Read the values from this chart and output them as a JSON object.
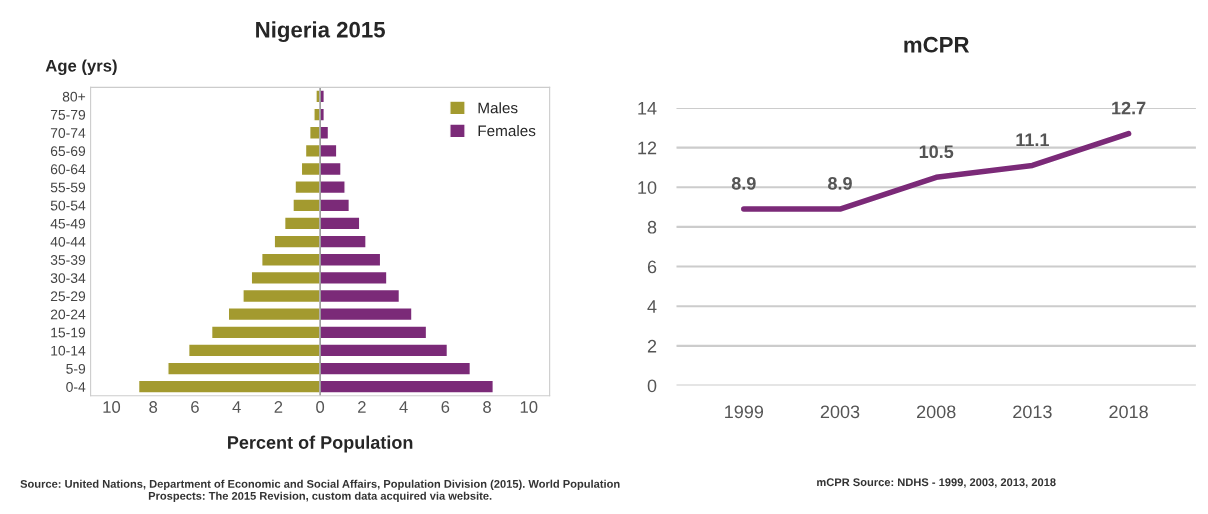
{
  "chart_data": [
    {
      "type": "bar",
      "orientation": "horizontal",
      "title": "Nigeria 2015",
      "ylabel": "Age (yrs)",
      "xlabel": "Percent of Population",
      "categories": [
        "80+",
        "75-79",
        "70-74",
        "65-69",
        "60-64",
        "55-59",
        "50-54",
        "45-49",
        "40-44",
        "35-39",
        "30-34",
        "25-29",
        "20-24",
        "15-19",
        "10-14",
        "5-9",
        "0-4"
      ],
      "series": [
        {
          "name": "Males",
          "color": "#a39a2f",
          "values": [
            -0.2,
            -0.3,
            -0.5,
            -0.7,
            -0.9,
            -1.2,
            -1.3,
            -1.7,
            -2.2,
            -2.8,
            -3.3,
            -3.7,
            -4.4,
            -5.2,
            -6.3,
            -7.3,
            -8.7
          ]
        },
        {
          "name": "Females",
          "color": "#7b2a78",
          "values": [
            0.2,
            0.2,
            0.4,
            0.8,
            1.0,
            1.2,
            1.4,
            1.9,
            2.2,
            2.9,
            3.2,
            3.8,
            4.4,
            5.1,
            6.1,
            7.2,
            8.3
          ]
        }
      ],
      "xlim": [
        -11,
        11
      ],
      "xticks": [
        {
          "value": -10,
          "label": "10"
        },
        {
          "value": -8,
          "label": "8"
        },
        {
          "value": -6,
          "label": "6"
        },
        {
          "value": -4,
          "label": "4"
        },
        {
          "value": -2,
          "label": "2"
        },
        0,
        2,
        4,
        6,
        8,
        10
      ],
      "legend": "top right",
      "grid": false,
      "stacked": true,
      "ref_lines": [
        {
          "axis": "x",
          "value": 0,
          "color": "#888888"
        }
      ],
      "annotations": [
        "Source: United Nations, Department of Economic and Social Affairs, Population Division (2015). World Population Prospects: The 2015 Revision, custom data acquired via website."
      ]
    },
    {
      "type": "line",
      "title": "mCPR",
      "categories": [
        "1999",
        "2003",
        "2008",
        "2013",
        "2018"
      ],
      "series": [
        {
          "color": "#7b2a78",
          "values": [
            8.9,
            8.9,
            10.5,
            11.1,
            12.7
          ]
        }
      ],
      "ylim": [
        0,
        14
      ],
      "yticks": [
        0,
        2,
        4,
        6,
        8,
        10,
        12,
        14
      ],
      "grid": "y",
      "data_labels": true,
      "legend": false,
      "annotations": [
        "mCPR Source: NDHS - 1999, 2003, 2013, 2018"
      ]
    }
  ]
}
